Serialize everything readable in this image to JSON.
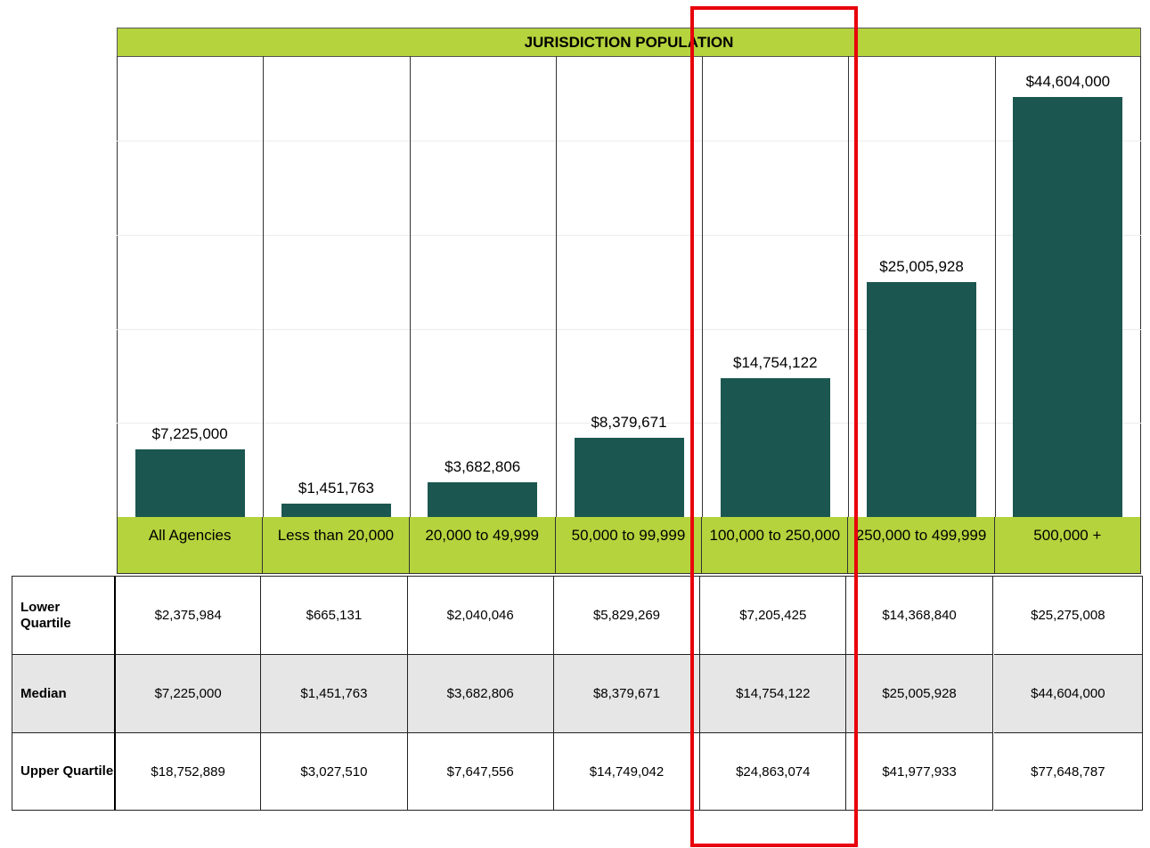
{
  "chart_data": {
    "type": "bar",
    "title": "JURISDICTION POPULATION",
    "categories": [
      "All Agencies",
      "Less than 20,000",
      "20,000 to 49,999",
      "50,000 to 99,999",
      "100,000 to 250,000",
      "250,000 to 499,999",
      "500,000 +"
    ],
    "values": [
      7225000,
      1451763,
      3682806,
      8379671,
      14754122,
      25005928,
      44604000
    ],
    "value_labels": [
      "$7,225,000",
      "$1,451,763",
      "$3,682,806",
      "$8,379,671",
      "$14,754,122",
      "$25,005,928",
      "$44,604,000"
    ],
    "color": "#1b5750",
    "band_color": "#b5d33d",
    "ylim": [
      0,
      49000000
    ],
    "yticks": [
      10000000,
      20000000,
      30000000,
      40000000
    ],
    "grid": true
  },
  "table": {
    "rows": [
      {
        "label": "Lower Quartile",
        "cells": [
          "$2,375,984",
          "$665,131",
          "$2,040,046",
          "$5,829,269",
          "$7,205,425",
          "$14,368,840",
          "$25,275,008"
        ]
      },
      {
        "label": "Median",
        "cells": [
          "$7,225,000",
          "$1,451,763",
          "$3,682,806",
          "$8,379,671",
          "$14,754,122",
          "$25,005,928",
          "$44,604,000"
        ]
      },
      {
        "label": "Upper Quartile",
        "cells": [
          "$18,752,889",
          "$3,027,510",
          "$7,647,556",
          "$14,749,042",
          "$24,863,074",
          "$41,977,933",
          "$77,648,787"
        ]
      }
    ]
  }
}
